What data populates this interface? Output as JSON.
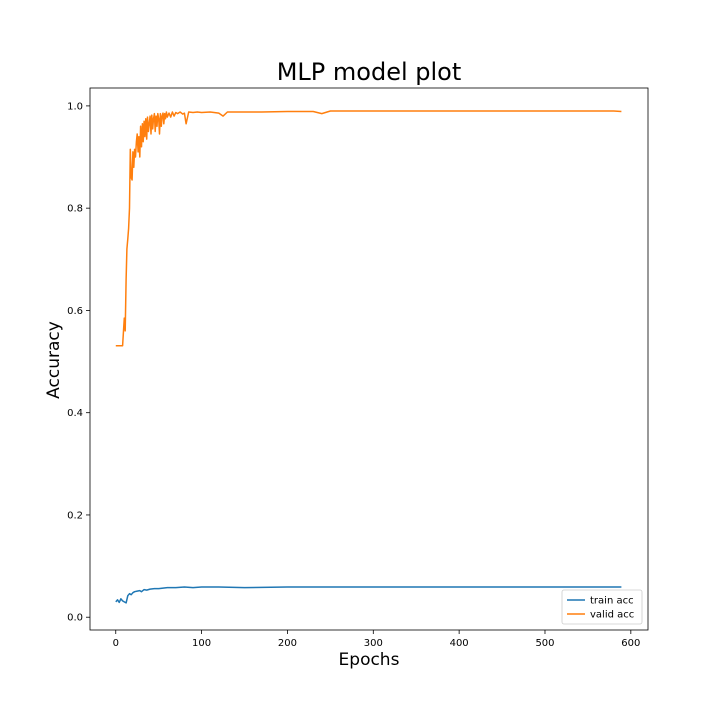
{
  "chart_data": {
    "type": "line",
    "title": "MLP model plot",
    "xlabel": "Epochs",
    "ylabel": "Accuracy",
    "xlim": [
      -30,
      620
    ],
    "ylim": [
      -0.025,
      1.035
    ],
    "xticks": [
      0,
      100,
      200,
      300,
      400,
      500,
      600
    ],
    "yticks": [
      0.0,
      0.2,
      0.4,
      0.6,
      0.8,
      1.0
    ],
    "ytick_labels": [
      "0.0",
      "0.2",
      "0.4",
      "0.6",
      "0.8",
      "1.0"
    ],
    "grid": false,
    "legend_position": "lower-right",
    "series": [
      {
        "name": "train acc",
        "color": "#1f77b4",
        "x": [
          0,
          2,
          4,
          6,
          8,
          10,
          12,
          14,
          16,
          18,
          20,
          22,
          25,
          28,
          30,
          33,
          36,
          40,
          45,
          50,
          55,
          60,
          70,
          80,
          90,
          100,
          120,
          150,
          200,
          250,
          300,
          350,
          400,
          450,
          500,
          550,
          589
        ],
        "y": [
          0.03,
          0.034,
          0.029,
          0.036,
          0.032,
          0.03,
          0.028,
          0.042,
          0.046,
          0.044,
          0.048,
          0.05,
          0.051,
          0.052,
          0.05,
          0.054,
          0.053,
          0.055,
          0.056,
          0.056,
          0.057,
          0.058,
          0.058,
          0.059,
          0.058,
          0.059,
          0.059,
          0.058,
          0.059,
          0.059,
          0.059,
          0.059,
          0.059,
          0.059,
          0.059,
          0.059,
          0.059
        ]
      },
      {
        "name": "valid acc",
        "color": "#ff7f0e",
        "x": [
          0,
          3,
          6,
          8,
          9,
          10,
          11,
          12,
          13,
          14,
          15,
          16,
          17,
          18,
          19,
          20,
          21,
          22,
          23,
          24,
          25,
          26,
          27,
          28,
          29,
          30,
          31,
          32,
          33,
          34,
          35,
          36,
          37,
          38,
          39,
          40,
          41,
          42,
          43,
          44,
          45,
          46,
          47,
          48,
          49,
          50,
          51,
          52,
          53,
          54,
          55,
          56,
          57,
          58,
          59,
          60,
          62,
          64,
          66,
          68,
          70,
          72,
          75,
          78,
          80,
          82,
          85,
          90,
          95,
          100,
          110,
          120,
          125,
          130,
          140,
          150,
          170,
          200,
          230,
          240,
          250,
          300,
          350,
          400,
          450,
          500,
          550,
          580,
          589
        ],
        "y": [
          0.531,
          0.531,
          0.531,
          0.531,
          0.56,
          0.585,
          0.56,
          0.66,
          0.72,
          0.74,
          0.76,
          0.8,
          0.915,
          0.86,
          0.855,
          0.91,
          0.88,
          0.915,
          0.9,
          0.93,
          0.945,
          0.91,
          0.94,
          0.9,
          0.96,
          0.92,
          0.965,
          0.93,
          0.97,
          0.94,
          0.975,
          0.935,
          0.978,
          0.95,
          0.965,
          0.98,
          0.945,
          0.982,
          0.955,
          0.975,
          0.985,
          0.95,
          0.98,
          0.96,
          0.985,
          0.975,
          0.945,
          0.985,
          0.96,
          0.98,
          0.986,
          0.965,
          0.985,
          0.975,
          0.988,
          0.978,
          0.986,
          0.978,
          0.988,
          0.98,
          0.987,
          0.985,
          0.988,
          0.984,
          0.986,
          0.965,
          0.988,
          0.987,
          0.988,
          0.987,
          0.988,
          0.986,
          0.98,
          0.988,
          0.988,
          0.988,
          0.988,
          0.989,
          0.989,
          0.985,
          0.99,
          0.99,
          0.99,
          0.99,
          0.99,
          0.99,
          0.99,
          0.99,
          0.989
        ]
      }
    ]
  }
}
